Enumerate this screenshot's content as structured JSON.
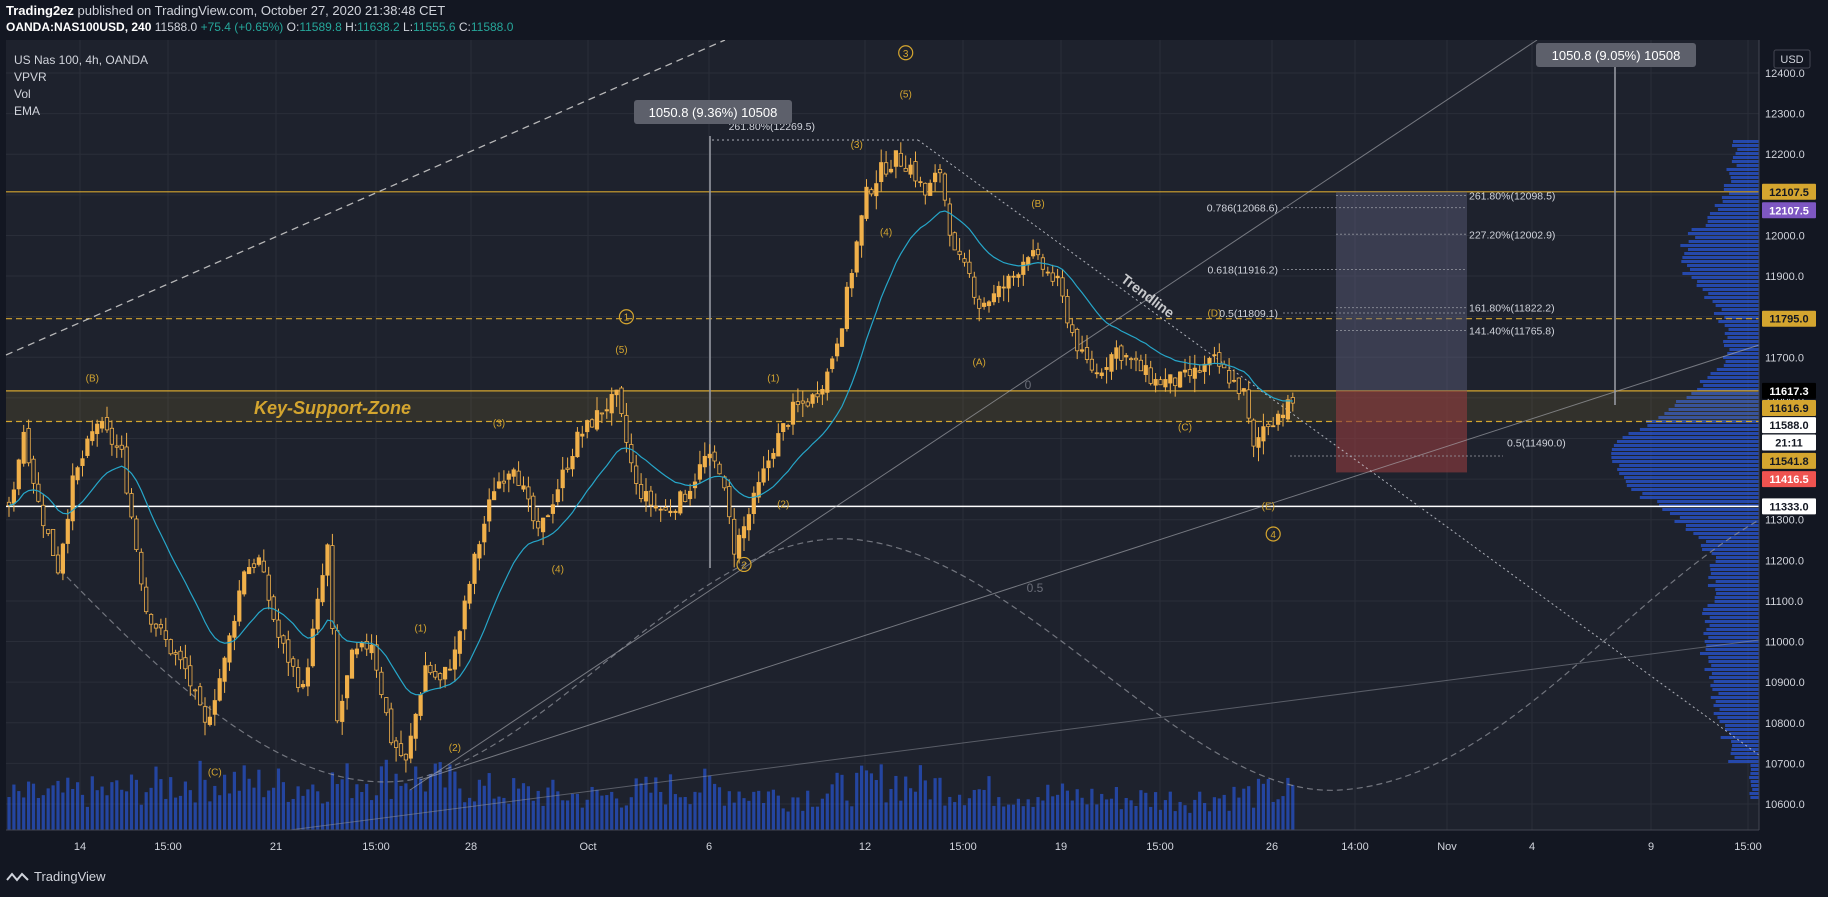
{
  "header": {
    "publisher": "Trading2ez",
    "published_text": "published on TradingView.com, October 27, 2020 21:38:48 CET",
    "symbol": "OANDA:NAS100USD, 240",
    "last": "11588.0",
    "change": "+75.4 (+0.65%)",
    "o_label": "O:",
    "o": "11589.8",
    "h_label": "H:",
    "h": "11638.2",
    "l_label": "L:",
    "l": "11555.6",
    "c_label": "C:",
    "c": "11588.0"
  },
  "legend": [
    "US Nas 100, 4h, OANDA",
    "VPVR",
    "Vol",
    "EMA"
  ],
  "currency": "USD",
  "footer": {
    "brand": "TradingView"
  },
  "colors": {
    "bg": "#1e222d",
    "up": "#f0b04a",
    "down": "#f0b04a",
    "ema": "#26a6c9",
    "gold": "#d4a52f",
    "volume": "#2962ff",
    "vpvr": "#2962ff",
    "target_box": "#5d5f7d",
    "stop_box": "#8b3a3e"
  },
  "chart_data": {
    "type": "candlestick",
    "title": "US Nas 100, 4h, OANDA",
    "ylim": [
      10550,
      12580
    ],
    "y_ticks": [
      "12400.0",
      "12300.0",
      "12200.0",
      "12100.0",
      "12000.0",
      "11900.0",
      "11800.0",
      "11700.0",
      "11600.0",
      "11500.0",
      "11400.0",
      "11300.0",
      "11200.0",
      "11100.0",
      "11000.0",
      "10900.0",
      "10800.0",
      "10700.0",
      "10600.0"
    ],
    "x_ticks": [
      "14",
      "15:00",
      "21",
      "15:00",
      "28",
      "Oct",
      "6",
      "12",
      "15:00",
      "19",
      "15:00",
      "26",
      "14:00",
      "Nov",
      "4",
      "9",
      "15:00"
    ],
    "price_anchors": [
      {
        "i": 0,
        "p": 11320
      },
      {
        "i": 3,
        "p": 11520
      },
      {
        "i": 6,
        "p": 11340
      },
      {
        "i": 10,
        "p": 11180
      },
      {
        "i": 13,
        "p": 11390
      },
      {
        "i": 18,
        "p": 11540
      },
      {
        "i": 23,
        "p": 11460
      },
      {
        "i": 28,
        "p": 11080
      },
      {
        "i": 33,
        "p": 10980
      },
      {
        "i": 36,
        "p": 10930
      },
      {
        "i": 40,
        "p": 10790
      },
      {
        "i": 44,
        "p": 10950
      },
      {
        "i": 48,
        "p": 11180
      },
      {
        "i": 51,
        "p": 11200
      },
      {
        "i": 55,
        "p": 11010
      },
      {
        "i": 60,
        "p": 10880
      },
      {
        "i": 65,
        "p": 11230
      },
      {
        "i": 67,
        "p": 10800
      },
      {
        "i": 70,
        "p": 10960
      },
      {
        "i": 74,
        "p": 11000
      },
      {
        "i": 78,
        "p": 10760
      },
      {
        "i": 81,
        "p": 10700
      },
      {
        "i": 85,
        "p": 10940
      },
      {
        "i": 88,
        "p": 10900
      },
      {
        "i": 91,
        "p": 10970
      },
      {
        "i": 95,
        "p": 11200
      },
      {
        "i": 99,
        "p": 11380
      },
      {
        "i": 103,
        "p": 11440
      },
      {
        "i": 108,
        "p": 11260
      },
      {
        "i": 112,
        "p": 11380
      },
      {
        "i": 116,
        "p": 11500
      },
      {
        "i": 121,
        "p": 11570
      },
      {
        "i": 124,
        "p": 11600
      },
      {
        "i": 128,
        "p": 11380
      },
      {
        "i": 131,
        "p": 11340
      },
      {
        "i": 134,
        "p": 11320
      },
      {
        "i": 138,
        "p": 11360
      },
      {
        "i": 142,
        "p": 11450
      },
      {
        "i": 145,
        "p": 11430
      },
      {
        "i": 148,
        "p": 11230
      },
      {
        "i": 150,
        "p": 11280
      },
      {
        "i": 153,
        "p": 11380
      },
      {
        "i": 156,
        "p": 11480
      },
      {
        "i": 160,
        "p": 11570
      },
      {
        "i": 164,
        "p": 11600
      },
      {
        "i": 167,
        "p": 11660
      },
      {
        "i": 170,
        "p": 11790
      },
      {
        "i": 173,
        "p": 11980
      },
      {
        "i": 175,
        "p": 12100
      },
      {
        "i": 178,
        "p": 12160
      },
      {
        "i": 181,
        "p": 12190
      },
      {
        "i": 184,
        "p": 12170
      },
      {
        "i": 187,
        "p": 12100
      },
      {
        "i": 190,
        "p": 12160
      },
      {
        "i": 193,
        "p": 11950
      },
      {
        "i": 196,
        "p": 11900
      },
      {
        "i": 198,
        "p": 11830
      },
      {
        "i": 201,
        "p": 11850
      },
      {
        "i": 205,
        "p": 11900
      },
      {
        "i": 208,
        "p": 11960
      },
      {
        "i": 211,
        "p": 11920
      },
      {
        "i": 214,
        "p": 11880
      },
      {
        "i": 217,
        "p": 11760
      },
      {
        "i": 219,
        "p": 11700
      },
      {
        "i": 222,
        "p": 11660
      },
      {
        "i": 226,
        "p": 11720
      },
      {
        "i": 230,
        "p": 11680
      },
      {
        "i": 234,
        "p": 11640
      },
      {
        "i": 238,
        "p": 11640
      },
      {
        "i": 242,
        "p": 11660
      },
      {
        "i": 246,
        "p": 11690
      },
      {
        "i": 249,
        "p": 11650
      },
      {
        "i": 252,
        "p": 11610
      },
      {
        "i": 254,
        "p": 11470
      },
      {
        "i": 256,
        "p": 11530
      },
      {
        "i": 259,
        "p": 11560
      },
      {
        "i": 262,
        "p": 11588
      }
    ],
    "volume_anchors": [
      {
        "i": 0,
        "v": 0.3
      },
      {
        "i": 20,
        "v": 0.35
      },
      {
        "i": 40,
        "v": 0.45
      },
      {
        "i": 60,
        "v": 0.4
      },
      {
        "i": 80,
        "v": 0.5
      },
      {
        "i": 100,
        "v": 0.35
      },
      {
        "i": 120,
        "v": 0.3
      },
      {
        "i": 140,
        "v": 0.4
      },
      {
        "i": 160,
        "v": 0.3
      },
      {
        "i": 180,
        "v": 0.45
      },
      {
        "i": 200,
        "v": 0.35
      },
      {
        "i": 220,
        "v": 0.3
      },
      {
        "i": 240,
        "v": 0.28
      },
      {
        "i": 262,
        "v": 0.35
      }
    ],
    "horizontal_levels": [
      {
        "price": 12107.5,
        "color": "gold",
        "style": "solid"
      },
      {
        "price": 11795.0,
        "color": "gold",
        "style": "dashed"
      },
      {
        "price": 11617.3,
        "color": "gold",
        "style": "solid"
      },
      {
        "price": 11541.8,
        "color": "gold",
        "style": "dashed"
      },
      {
        "price": 11333.0,
        "color": "white",
        "style": "solid"
      }
    ],
    "zone": {
      "label": "Key-Support-Zone",
      "from": 11541.8,
      "to": 11617.3
    },
    "price_labels": [
      {
        "text": "12107.5",
        "price": 12107.5,
        "bg": "#d4a52f",
        "fg": "#131722"
      },
      {
        "text": "12107.5",
        "price": 12062,
        "bg": "#7e57c2",
        "fg": "#ffffff"
      },
      {
        "text": "11795.0",
        "price": 11795.0,
        "bg": "#d4a52f",
        "fg": "#131722"
      },
      {
        "text": "11617.3",
        "price": 11617.3,
        "bg": "#000000",
        "fg": "#ffffff"
      },
      {
        "text": "11616.9",
        "price": 11575,
        "bg": "#d4a52f",
        "fg": "#131722"
      },
      {
        "text": "11588.0",
        "price": 11533,
        "bg": "#ffffff",
        "fg": "#131722"
      },
      {
        "text": "21:11",
        "price": 11490,
        "bg": "#ffffff",
        "fg": "#131722"
      },
      {
        "text": "11541.8",
        "price": 11445,
        "bg": "#d4a52f",
        "fg": "#131722"
      },
      {
        "text": "11416.5",
        "price": 11400,
        "bg": "#ef5350",
        "fg": "#ffffff"
      },
      {
        "text": "11333.0",
        "price": 11333.0,
        "bg": "#ffffff",
        "fg": "#131722"
      }
    ],
    "fib_labels": [
      {
        "text": "261.80%(12269.5)",
        "price": 12269.5
      },
      {
        "text": "0.786(12068.6)",
        "price": 12068.6
      },
      {
        "text": "0.618(11916.2)",
        "price": 11916.2
      },
      {
        "text": "0.5(11809.1)",
        "price": 11809.1
      },
      {
        "text": "261.80%(12098.5)",
        "price": 12098.5
      },
      {
        "text": "227.20%(12002.9)",
        "price": 12002.9
      },
      {
        "text": "161.80%(11822.2)",
        "price": 11822.2
      },
      {
        "text": "141.40%(11765.8)",
        "price": 11765.8
      },
      {
        "text": "0.5(11490.0)",
        "price": 11490.0
      }
    ],
    "measure_labels": [
      "1050.8 (9.36%) 10508",
      "1050.8 (9.05%) 10508"
    ],
    "wave_labels": [
      {
        "text": "(B)",
        "i": 17,
        "price": 11640
      },
      {
        "text": "(C)",
        "i": 42,
        "price": 10670
      },
      {
        "text": "(1)",
        "i": 84,
        "price": 11025
      },
      {
        "text": "(2)",
        "i": 91,
        "price": 10730
      },
      {
        "text": "(3)",
        "i": 100,
        "price": 11530
      },
      {
        "text": "(4)",
        "i": 112,
        "price": 11170
      },
      {
        "text": "(5)",
        "i": 125,
        "price": 11710
      },
      {
        "text": "1",
        "i": 126,
        "price": 11790,
        "circled": true
      },
      {
        "text": "(1)",
        "i": 156,
        "price": 11640
      },
      {
        "text": "(2)",
        "i": 158,
        "price": 11330
      },
      {
        "text": "(3)",
        "i": 173,
        "price": 12215
      },
      {
        "text": "(4)",
        "i": 179,
        "price": 12000
      },
      {
        "text": "(5)",
        "i": 183,
        "price": 12340
      },
      {
        "text": "3",
        "i": 183,
        "price": 12440,
        "circled": true
      },
      {
        "text": "2",
        "i": 150,
        "price": 11180,
        "circled": true
      },
      {
        "text": "(A)",
        "i": 198,
        "price": 11680
      },
      {
        "text": "(B)",
        "i": 210,
        "price": 12070
      },
      {
        "text": "(C)",
        "i": 240,
        "price": 11520
      },
      {
        "text": "(D)",
        "i": 246,
        "price": 11800
      },
      {
        "text": "(E)",
        "i": 257,
        "price": 11325
      },
      {
        "text": "4",
        "i": 258,
        "price": 11255,
        "circled": true
      }
    ],
    "annotations": [
      {
        "text": "Trendline",
        "i": 234,
        "price": 11920
      },
      {
        "text": "0",
        "i": 208,
        "price": 11665
      },
      {
        "text": "0.5",
        "i": 209,
        "price": 11175
      }
    ]
  }
}
